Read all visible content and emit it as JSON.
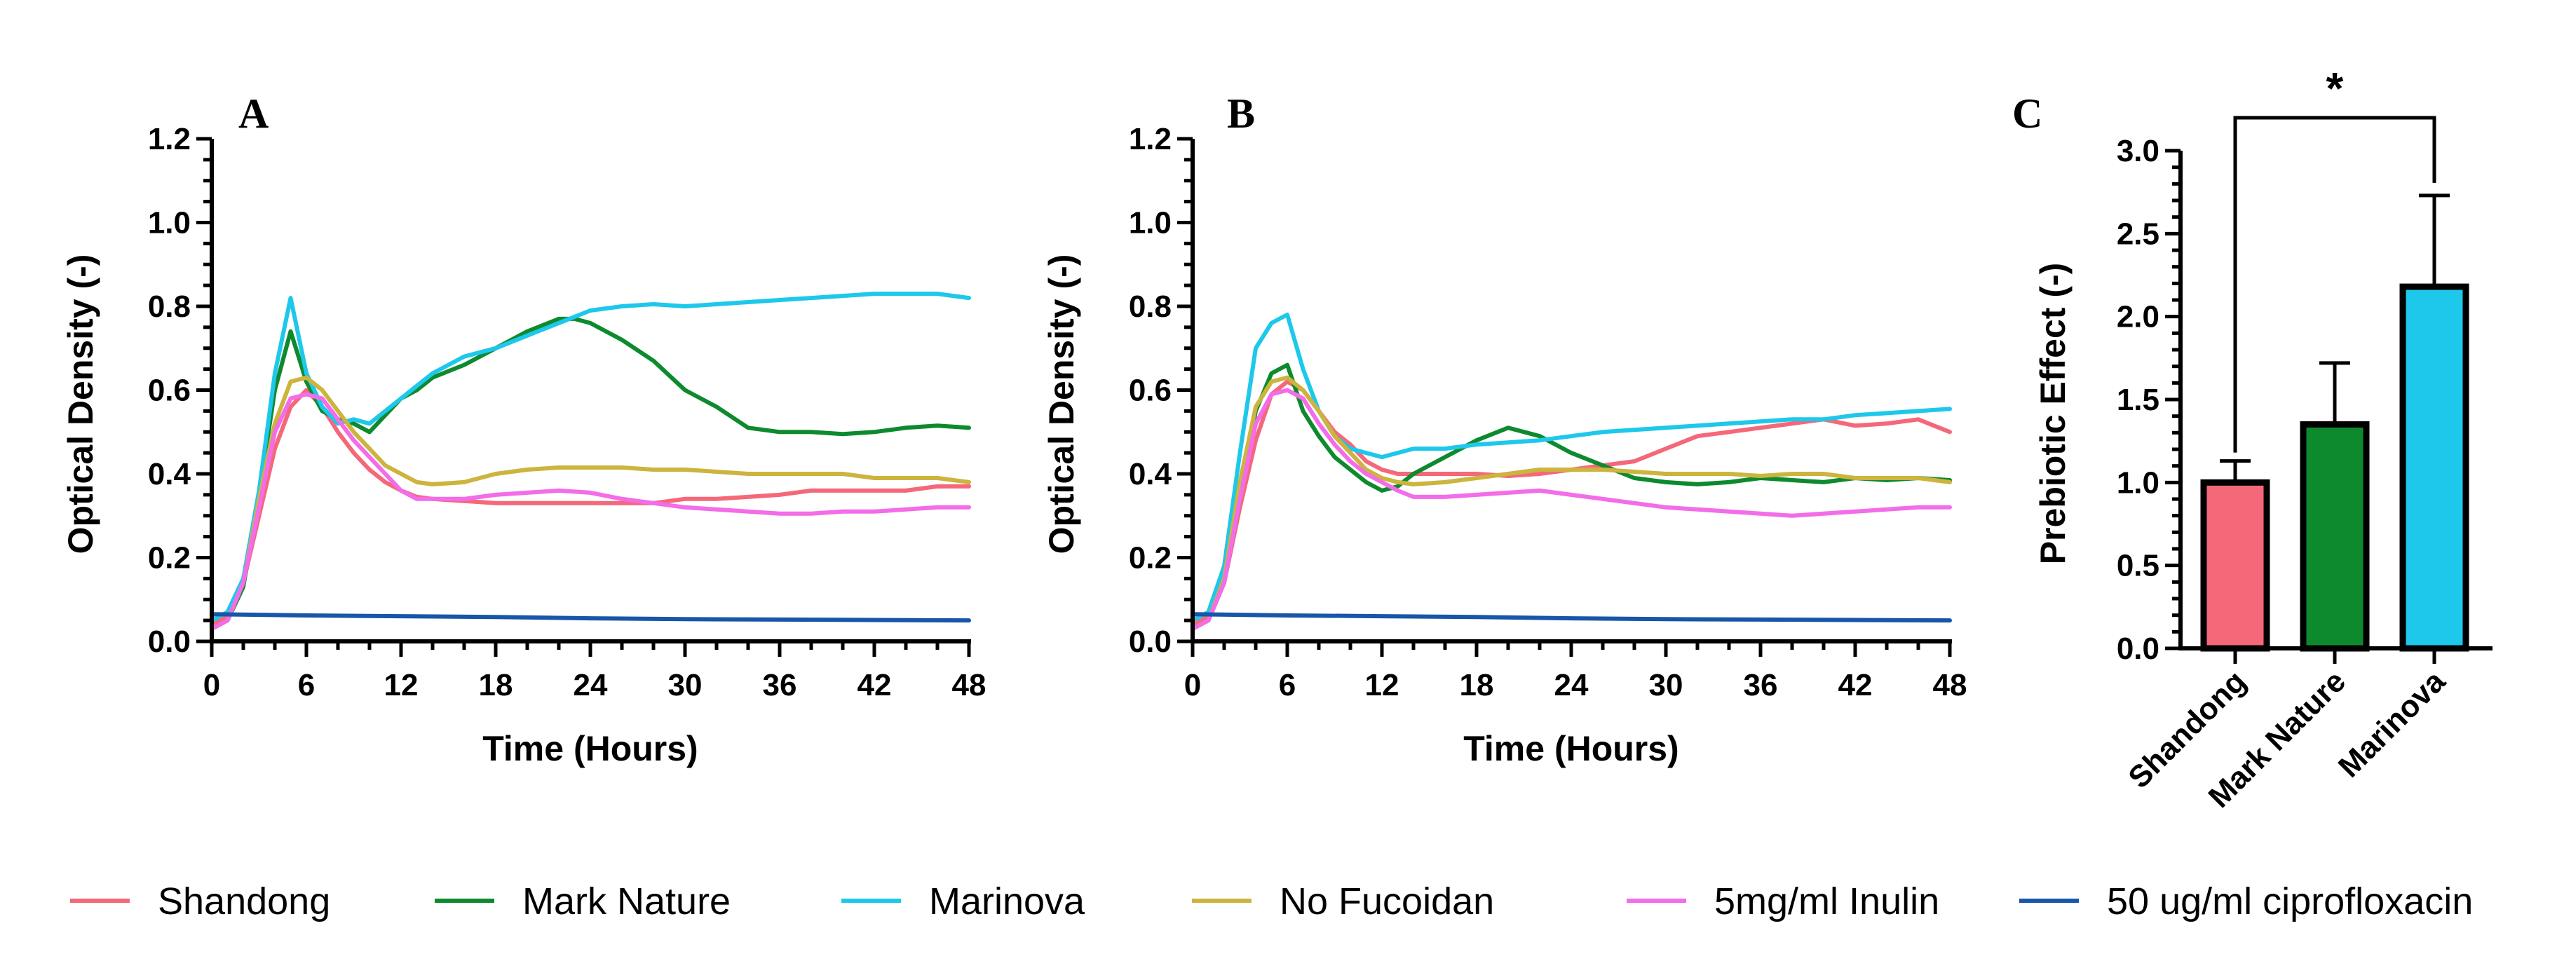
{
  "colors": {
    "Shandong": "#f4687a",
    "Mark Nature": "#0e8a2e",
    "Marinova": "#1ec8ea",
    "No Fucoidan": "#ccb43e",
    "5mg/ml Inulin": "#f36ce8",
    "50 ug/ml ciprofloxacin": "#1756a9"
  },
  "legend": [
    "Shandong",
    "Mark Nature",
    "Marinova",
    "No Fucoidan",
    "5mg/ml Inulin",
    "50 ug/ml ciprofloxacin"
  ],
  "chart_data": [
    {
      "panel": "A",
      "type": "line",
      "xlabel": "Time (Hours)",
      "ylabel": "Optical Density (-)",
      "xlim": [
        0,
        48
      ],
      "ylim": [
        0,
        1.2
      ],
      "xticks": [
        "0",
        "6",
        "12",
        "18",
        "24",
        "30",
        "36",
        "42",
        "48"
      ],
      "yticks": [
        "0.0",
        "0.2",
        "0.4",
        "0.6",
        "0.8",
        "1.0",
        "1.2"
      ],
      "series": [
        {
          "name": "Shandong",
          "x": [
            0,
            1,
            2,
            3,
            4,
            5,
            6,
            7,
            8,
            9,
            10,
            11,
            12,
            13,
            14,
            16,
            18,
            20,
            22,
            24,
            26,
            28,
            30,
            32,
            34,
            36,
            38,
            40,
            42,
            44,
            46,
            48
          ],
          "values": [
            0.04,
            0.06,
            0.14,
            0.3,
            0.46,
            0.56,
            0.6,
            0.56,
            0.5,
            0.45,
            0.41,
            0.38,
            0.36,
            0.345,
            0.34,
            0.335,
            0.33,
            0.33,
            0.33,
            0.33,
            0.33,
            0.33,
            0.34,
            0.34,
            0.345,
            0.35,
            0.36,
            0.36,
            0.36,
            0.36,
            0.37,
            0.37
          ]
        },
        {
          "name": "Mark Nature",
          "x": [
            0,
            1,
            2,
            3,
            4,
            5,
            6,
            7,
            8,
            9,
            10,
            11,
            12,
            13,
            14,
            16,
            18,
            20,
            22,
            23,
            24,
            26,
            28,
            30,
            32,
            34,
            36,
            38,
            40,
            42,
            44,
            46,
            48
          ],
          "values": [
            0.03,
            0.05,
            0.13,
            0.35,
            0.6,
            0.74,
            0.62,
            0.55,
            0.53,
            0.52,
            0.5,
            0.54,
            0.58,
            0.6,
            0.63,
            0.66,
            0.7,
            0.74,
            0.77,
            0.77,
            0.76,
            0.72,
            0.67,
            0.6,
            0.56,
            0.51,
            0.5,
            0.5,
            0.495,
            0.5,
            0.51,
            0.515,
            0.51
          ]
        },
        {
          "name": "Marinova",
          "x": [
            0,
            1,
            2,
            3,
            4,
            5,
            6,
            7,
            8,
            9,
            10,
            11,
            12,
            13,
            14,
            16,
            18,
            20,
            22,
            24,
            26,
            28,
            30,
            32,
            34,
            36,
            38,
            40,
            42,
            44,
            46,
            48
          ],
          "values": [
            0.05,
            0.07,
            0.15,
            0.36,
            0.64,
            0.82,
            0.64,
            0.56,
            0.52,
            0.53,
            0.52,
            0.55,
            0.58,
            0.61,
            0.64,
            0.68,
            0.7,
            0.73,
            0.76,
            0.79,
            0.8,
            0.805,
            0.8,
            0.805,
            0.81,
            0.815,
            0.82,
            0.825,
            0.83,
            0.83,
            0.83,
            0.82
          ]
        },
        {
          "name": "No Fucoidan",
          "x": [
            0,
            1,
            2,
            3,
            4,
            5,
            6,
            7,
            8,
            9,
            10,
            11,
            12,
            13,
            14,
            16,
            18,
            20,
            22,
            24,
            26,
            28,
            30,
            32,
            34,
            36,
            38,
            40,
            42,
            44,
            46,
            48
          ],
          "values": [
            0.03,
            0.05,
            0.14,
            0.34,
            0.52,
            0.62,
            0.63,
            0.6,
            0.55,
            0.5,
            0.46,
            0.42,
            0.4,
            0.38,
            0.375,
            0.38,
            0.4,
            0.41,
            0.415,
            0.415,
            0.415,
            0.41,
            0.41,
            0.405,
            0.4,
            0.4,
            0.4,
            0.4,
            0.39,
            0.39,
            0.39,
            0.38
          ]
        },
        {
          "name": "5mg/ml Inulin",
          "x": [
            0,
            1,
            2,
            3,
            4,
            5,
            6,
            7,
            8,
            9,
            10,
            11,
            12,
            13,
            14,
            16,
            18,
            20,
            22,
            24,
            26,
            28,
            30,
            32,
            34,
            36,
            38,
            40,
            42,
            44,
            46,
            48
          ],
          "values": [
            0.03,
            0.05,
            0.14,
            0.32,
            0.5,
            0.58,
            0.59,
            0.58,
            0.53,
            0.48,
            0.44,
            0.4,
            0.36,
            0.34,
            0.34,
            0.34,
            0.35,
            0.355,
            0.36,
            0.355,
            0.34,
            0.33,
            0.32,
            0.315,
            0.31,
            0.305,
            0.305,
            0.31,
            0.31,
            0.315,
            0.32,
            0.32
          ]
        },
        {
          "name": "50 ug/ml ciprofloxacin",
          "x": [
            0,
            6,
            12,
            18,
            24,
            30,
            36,
            42,
            48
          ],
          "values": [
            0.065,
            0.062,
            0.06,
            0.058,
            0.055,
            0.053,
            0.052,
            0.051,
            0.05
          ]
        }
      ]
    },
    {
      "panel": "B",
      "type": "line",
      "xlabel": "Time (Hours)",
      "ylabel": "Optical Density (-)",
      "xlim": [
        0,
        48
      ],
      "ylim": [
        0,
        1.2
      ],
      "xticks": [
        "0",
        "6",
        "12",
        "18",
        "24",
        "30",
        "36",
        "42",
        "48"
      ],
      "yticks": [
        "0.0",
        "0.2",
        "0.4",
        "0.6",
        "0.8",
        "1.0",
        "1.2"
      ],
      "series": [
        {
          "name": "Shandong",
          "x": [
            0,
            1,
            2,
            3,
            4,
            5,
            6,
            7,
            8,
            9,
            10,
            11,
            12,
            13,
            14,
            16,
            18,
            20,
            22,
            24,
            26,
            28,
            30,
            32,
            34,
            36,
            38,
            40,
            42,
            44,
            46,
            48
          ],
          "values": [
            0.04,
            0.06,
            0.14,
            0.32,
            0.48,
            0.59,
            0.62,
            0.6,
            0.55,
            0.5,
            0.47,
            0.43,
            0.41,
            0.4,
            0.4,
            0.4,
            0.4,
            0.395,
            0.4,
            0.41,
            0.42,
            0.43,
            0.46,
            0.49,
            0.5,
            0.51,
            0.52,
            0.53,
            0.515,
            0.52,
            0.53,
            0.5
          ]
        },
        {
          "name": "Mark Nature",
          "x": [
            0,
            1,
            2,
            3,
            4,
            5,
            6,
            7,
            8,
            9,
            10,
            11,
            12,
            13,
            14,
            16,
            18,
            20,
            22,
            24,
            26,
            28,
            30,
            32,
            34,
            36,
            38,
            40,
            42,
            44,
            46,
            48
          ],
          "values": [
            0.03,
            0.05,
            0.14,
            0.34,
            0.55,
            0.64,
            0.66,
            0.55,
            0.49,
            0.44,
            0.41,
            0.38,
            0.36,
            0.37,
            0.4,
            0.44,
            0.48,
            0.51,
            0.49,
            0.45,
            0.42,
            0.39,
            0.38,
            0.375,
            0.38,
            0.39,
            0.385,
            0.38,
            0.39,
            0.385,
            0.39,
            0.385
          ]
        },
        {
          "name": "Marinova",
          "x": [
            0,
            1,
            2,
            3,
            4,
            5,
            6,
            7,
            8,
            9,
            10,
            11,
            12,
            13,
            14,
            16,
            18,
            20,
            22,
            24,
            26,
            28,
            30,
            32,
            34,
            36,
            38,
            40,
            42,
            44,
            46,
            48
          ],
          "values": [
            0.05,
            0.07,
            0.18,
            0.45,
            0.7,
            0.76,
            0.78,
            0.65,
            0.55,
            0.49,
            0.46,
            0.45,
            0.44,
            0.45,
            0.46,
            0.46,
            0.47,
            0.475,
            0.48,
            0.49,
            0.5,
            0.505,
            0.51,
            0.515,
            0.52,
            0.525,
            0.53,
            0.53,
            0.54,
            0.545,
            0.55,
            0.555
          ]
        },
        {
          "name": "No Fucoidan",
          "x": [
            0,
            1,
            2,
            3,
            4,
            5,
            6,
            7,
            8,
            9,
            10,
            11,
            12,
            13,
            14,
            16,
            18,
            20,
            22,
            24,
            26,
            28,
            30,
            32,
            34,
            36,
            38,
            40,
            42,
            44,
            46,
            48
          ],
          "values": [
            0.03,
            0.05,
            0.15,
            0.38,
            0.56,
            0.62,
            0.63,
            0.6,
            0.55,
            0.49,
            0.45,
            0.41,
            0.39,
            0.38,
            0.375,
            0.38,
            0.39,
            0.4,
            0.41,
            0.41,
            0.41,
            0.405,
            0.4,
            0.4,
            0.4,
            0.395,
            0.4,
            0.4,
            0.39,
            0.39,
            0.39,
            0.38
          ]
        },
        {
          "name": "5mg/ml Inulin",
          "x": [
            0,
            1,
            2,
            3,
            4,
            5,
            6,
            7,
            8,
            9,
            10,
            11,
            12,
            13,
            14,
            16,
            18,
            20,
            22,
            24,
            26,
            28,
            30,
            32,
            34,
            36,
            38,
            40,
            42,
            44,
            46,
            48
          ],
          "values": [
            0.03,
            0.05,
            0.14,
            0.34,
            0.52,
            0.59,
            0.6,
            0.58,
            0.52,
            0.47,
            0.43,
            0.4,
            0.38,
            0.36,
            0.345,
            0.345,
            0.35,
            0.355,
            0.36,
            0.35,
            0.34,
            0.33,
            0.32,
            0.315,
            0.31,
            0.305,
            0.3,
            0.305,
            0.31,
            0.315,
            0.32,
            0.32
          ]
        },
        {
          "name": "50 ug/ml ciprofloxacin",
          "x": [
            0,
            6,
            12,
            18,
            24,
            30,
            36,
            42,
            48
          ],
          "values": [
            0.065,
            0.062,
            0.06,
            0.058,
            0.055,
            0.053,
            0.052,
            0.051,
            0.05
          ]
        }
      ]
    },
    {
      "panel": "C",
      "type": "bar",
      "ylabel": "Prebiotic Effect (-)",
      "ylim": [
        0,
        3.0
      ],
      "yticks": [
        "0.0",
        "0.5",
        "1.0",
        "1.5",
        "2.0",
        "2.5",
        "3.0"
      ],
      "categories": [
        "Shandong",
        "Mark Nature",
        "Marinova"
      ],
      "values": [
        1.0,
        1.35,
        2.18
      ],
      "errors": [
        0.13,
        0.37,
        0.55
      ],
      "significance": {
        "from": "Shandong",
        "to": "Marinova",
        "label": "*"
      }
    }
  ]
}
